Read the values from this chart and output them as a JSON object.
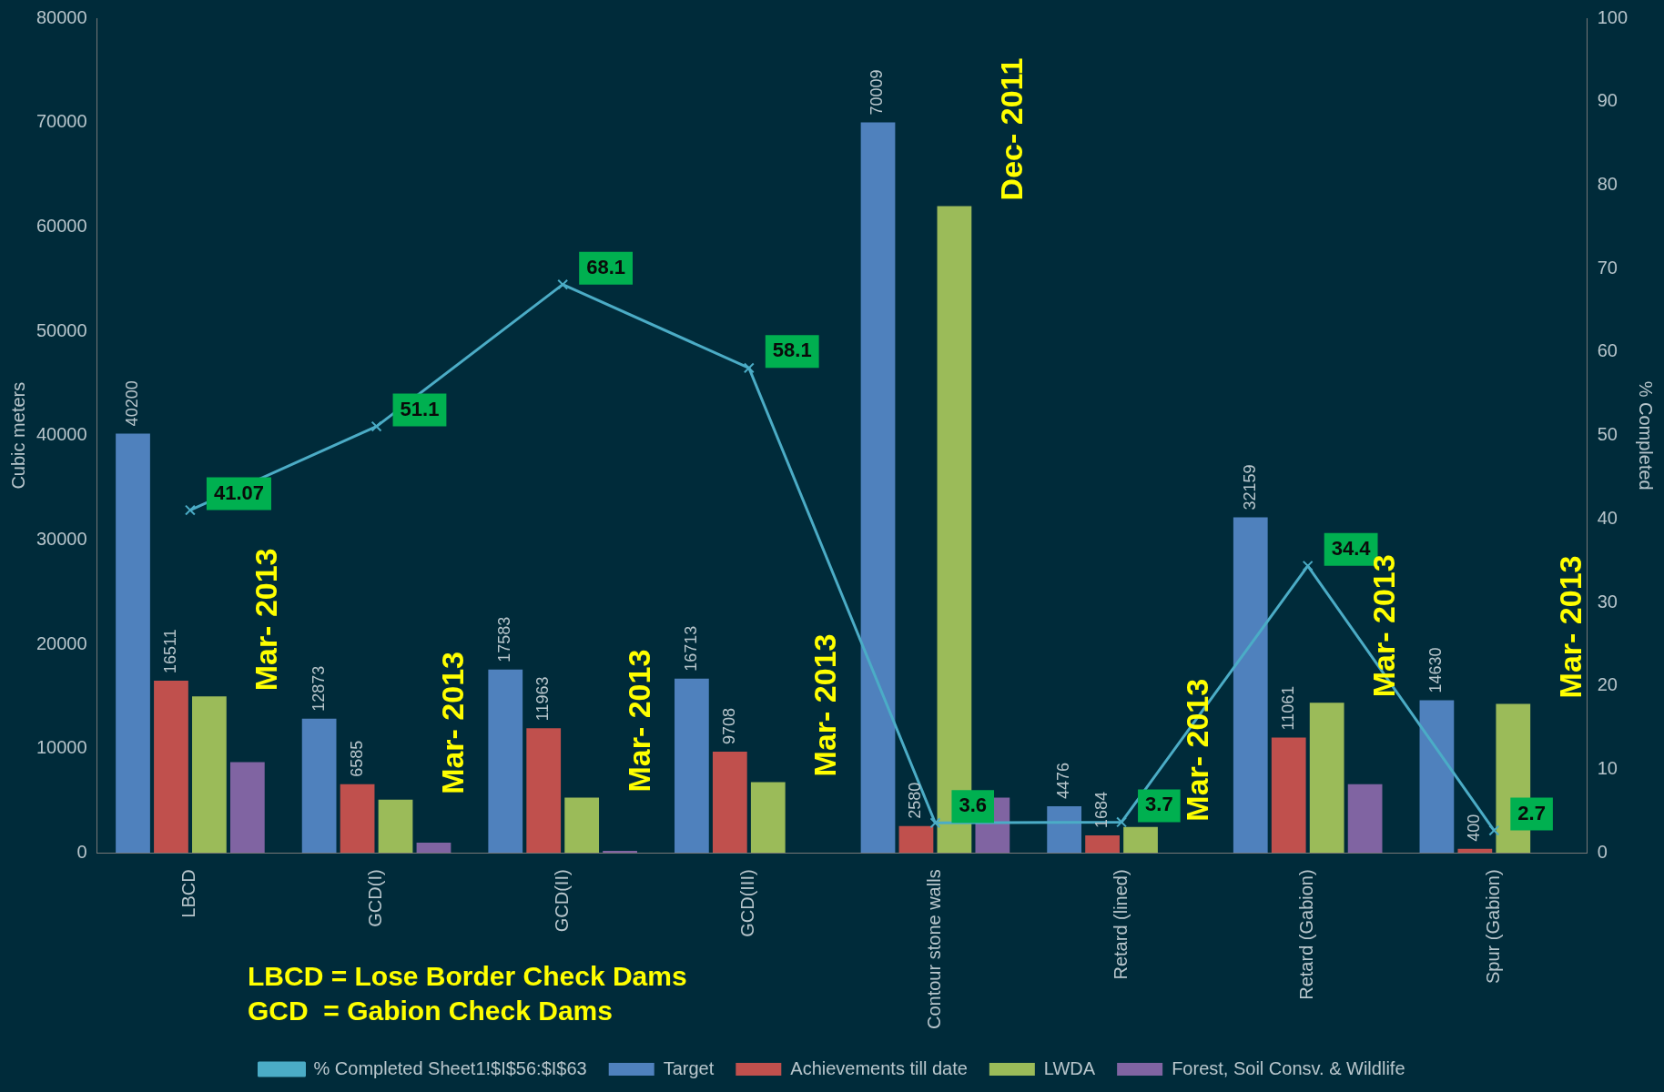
{
  "chart_data": {
    "type": "bar",
    "categories": [
      "LBCD",
      "GCD(I)",
      "GCD(II)",
      "GCD(III)",
      "Contour stone walls",
      "Retard (lined)",
      "Retard (Gabion)",
      "Spur (Gabion)"
    ],
    "series": [
      {
        "name": "Target",
        "color": "#4f81bd",
        "values": [
          40200,
          12873,
          17583,
          16713,
          70009,
          4476,
          32159,
          14630
        ],
        "value_labels": [
          "40200",
          "12873",
          "17583",
          "16713",
          "70009",
          "4476",
          "32159",
          "14630"
        ]
      },
      {
        "name": "Achievements till date",
        "color": "#c0504d",
        "values": [
          16511,
          6585,
          11963,
          9708,
          2580,
          1684,
          11061,
          400
        ],
        "value_labels": [
          "16511",
          "6585",
          "11963",
          "9708",
          "2580",
          "1684",
          "11061",
          "400"
        ]
      },
      {
        "name": "LWDA",
        "color": "#9bbb59",
        "values": [
          15000,
          5100,
          5300,
          6800,
          62000,
          2500,
          14400,
          14300
        ]
      },
      {
        "name": "Forest, Soil Consv. & Wildlife",
        "color": "#8064a2",
        "values": [
          8700,
          1000,
          200,
          null,
          5300,
          0,
          6600,
          0
        ]
      },
      {
        "name": "% Completed Sheet1!$I$56:$I$63",
        "type": "line",
        "axis": "y2",
        "color": "#4bacc6",
        "values": [
          41.07,
          51.1,
          68.1,
          58.1,
          3.6,
          3.7,
          34.4,
          2.7
        ],
        "value_labels": [
          "41.07",
          "51.1",
          "68.1",
          "58.1",
          "3.6",
          "3.7",
          "34.4",
          "2.7"
        ]
      }
    ],
    "ylabel": "Cubic meters",
    "y2label": "% Completed",
    "ylim": [
      0,
      80000
    ],
    "yticks": [
      0,
      10000,
      20000,
      30000,
      40000,
      50000,
      60000,
      70000,
      80000
    ],
    "y2lim": [
      0,
      100
    ],
    "y2ticks": [
      0,
      10,
      20,
      30,
      40,
      50,
      60,
      70,
      80,
      90,
      100
    ],
    "marker": "cross",
    "grid": false,
    "legend": "bottom",
    "annotations": [
      {
        "text": "Mar- 2013",
        "x": "LBCD",
        "y": 15000
      },
      {
        "text": "Mar- 2013",
        "x": "GCD(I)",
        "y": 5100
      },
      {
        "text": "Mar- 2013",
        "x": "GCD(II)",
        "y": 5300
      },
      {
        "text": "Mar- 2013",
        "x": "GCD(III)",
        "y": 6800
      },
      {
        "text": "Dec- 2011",
        "x": "Contour stone walls",
        "y": 62000
      },
      {
        "text": "Mar- 2013",
        "x": "Retard (lined)",
        "y": 2500
      },
      {
        "text": "Mar- 2013",
        "x": "Retard (Gabion)",
        "y": 14400
      },
      {
        "text": "Mar- 2013",
        "x": "Spur (Gabion)",
        "y": 14300
      },
      "LBCD = Lose Border Check Dams",
      "GCD  = Gabion Check Dams"
    ]
  }
}
